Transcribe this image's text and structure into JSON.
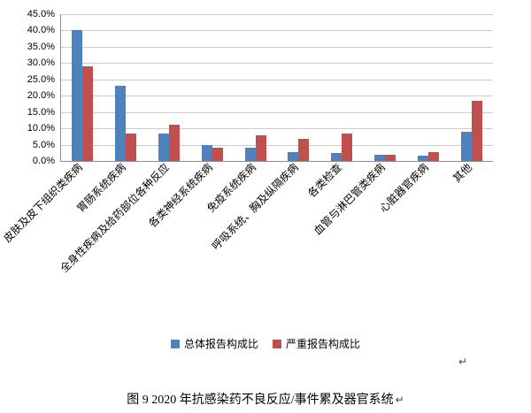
{
  "chart_data": {
    "type": "bar",
    "title": "",
    "categories": [
      "皮肤及皮下组织类疾病",
      "胃肠系统疾病",
      "全身性疾病及给药部位各种反应",
      "各类神经系统疾病",
      "免疫系统疾病",
      "呼吸系统、胸及纵隔疾病",
      "各类检查",
      "血管与淋巴管类疾病",
      "心脏器官疾病",
      "其他"
    ],
    "series": [
      {
        "name": "总体报告构成比",
        "color": "#4F81BD",
        "values": [
          40.0,
          23.0,
          8.5,
          5.0,
          4.0,
          2.8,
          2.5,
          2.0,
          1.5,
          9.0
        ]
      },
      {
        "name": "严重报告构成比",
        "color": "#C0504D",
        "values": [
          29.0,
          8.5,
          11.0,
          4.0,
          7.8,
          6.8,
          8.5,
          2.0,
          2.8,
          18.5
        ]
      }
    ],
    "xlabel": "",
    "ylabel": "",
    "ylim": [
      0,
      45
    ],
    "ytick_step": 5,
    "ytick_labels": [
      "0.0%",
      "5.0%",
      "10.0%",
      "15.0%",
      "20.0%",
      "25.0%",
      "30.0%",
      "35.0%",
      "40.0%",
      "45.0%"
    ],
    "grid": true,
    "legend_position": "bottom"
  },
  "caption": "图 9  2020 年抗感染药不良反应/事件累及器官系统",
  "paragraph_mark": "↵"
}
